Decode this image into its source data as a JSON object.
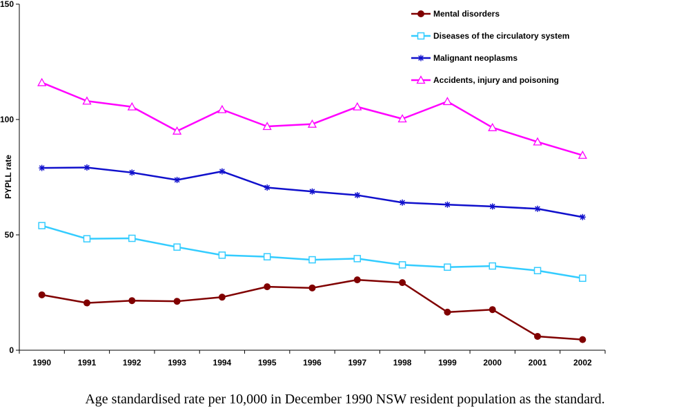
{
  "chart_data": {
    "type": "line",
    "title": "",
    "xlabel": "",
    "ylabel": "PYPLL rate",
    "ylim": [
      0,
      150
    ],
    "yticks": [
      "0",
      "50",
      "100",
      "150"
    ],
    "categories": [
      "1990",
      "1991",
      "1992",
      "1993",
      "1994",
      "1995",
      "1996",
      "1997",
      "1998",
      "1999",
      "2000",
      "2001",
      "2002"
    ],
    "grid": false,
    "legend_position": "top-right",
    "series": [
      {
        "name": "Mental disorders",
        "color": "#800000",
        "marker": "filled-circle",
        "values": [
          24.0,
          20.5,
          21.5,
          21.2,
          23.0,
          27.5,
          27.0,
          30.5,
          29.3,
          16.5,
          17.6,
          6.0,
          4.6
        ]
      },
      {
        "name": "Diseases of the circulatory system",
        "color": "#33CCFF",
        "marker": "open-square",
        "values": [
          54.0,
          48.3,
          48.5,
          44.7,
          41.2,
          40.5,
          39.2,
          39.7,
          37.0,
          36.0,
          36.5,
          34.5,
          31.2
        ]
      },
      {
        "name": "Malignant neoplasms",
        "color": "#1010CC",
        "marker": "asterisk",
        "values": [
          79.0,
          79.2,
          77.0,
          73.8,
          77.5,
          70.5,
          68.8,
          67.2,
          64.0,
          63.1,
          62.3,
          61.3,
          57.7
        ]
      },
      {
        "name": "Accidents, injury and poisoning",
        "color": "#FF00FF",
        "marker": "open-triangle",
        "values": [
          116.0,
          108.0,
          105.5,
          95.0,
          104.3,
          97.0,
          98.0,
          105.5,
          100.3,
          107.8,
          96.5,
          90.3,
          84.5
        ]
      }
    ]
  },
  "caption": "Age standardised rate per 10,000 in December 1990 NSW resident population as the standard."
}
